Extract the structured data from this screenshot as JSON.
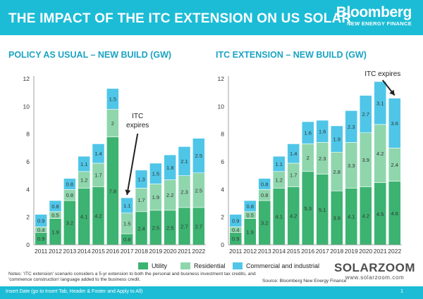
{
  "header": {
    "title": "THE IMPACT OF THE ITC EXTENSION ON US SOLAR",
    "logo_main": "Bloomberg",
    "logo_sub": "NEW ENERGY FINANCE"
  },
  "colors": {
    "header_bg": "#1cbcd6",
    "utility": "#3cb371",
    "residential": "#8fd6ad",
    "commercial": "#4fc6e8",
    "panel_title": "#1aa3c2"
  },
  "legend": {
    "utility": "Utility",
    "residential": "Residential",
    "commercial": "Commercial and industrial"
  },
  "notes": "Notes: 'ITC extension' scenario considers a 5-yr extension to both the personal and business investment tax credits, and 'commence construction' language added to the business credit.",
  "source": "Source: Bloomberg New Energy Finance",
  "watermark": {
    "main": "SOLARZOOM",
    "sub": "www.solarzoom.com"
  },
  "footer": {
    "text": "Insert Date (go to Insert Tab, Header & Footer and Apply to All)",
    "page": "1"
  },
  "chart_data": [
    {
      "type": "bar",
      "stacked": true,
      "title": "POLICY AS USUAL – NEW BUILD (GW)",
      "ylim": [
        0,
        12
      ],
      "yticks": [
        0,
        2,
        4,
        6,
        8,
        10,
        12
      ],
      "grid": false,
      "categories": [
        "2011",
        "2012",
        "2013",
        "2014",
        "2015",
        "2016",
        "2017",
        "2018",
        "2019",
        "2020",
        "2021",
        "2022"
      ],
      "series": [
        {
          "name": "Utility",
          "values": [
            0.9,
            1.9,
            3.2,
            4.1,
            4.2,
            7.8,
            0.8,
            2.4,
            2.5,
            2.5,
            2.7,
            2.7
          ]
        },
        {
          "name": "Residential",
          "values": [
            0.4,
            0.5,
            0.8,
            1.2,
            1.7,
            2.0,
            1.5,
            1.7,
            1.9,
            2.2,
            2.3,
            2.5
          ]
        },
        {
          "name": "Commercial and industrial",
          "values": [
            0.9,
            0.8,
            0.8,
            1.1,
            1.4,
            1.5,
            1.1,
            1.3,
            1.5,
            1.8,
            2.1,
            2.5
          ]
        }
      ],
      "annotation": {
        "text": "ITC expires",
        "category": "2017"
      }
    },
    {
      "type": "bar",
      "stacked": true,
      "title": "ITC EXTENSION – NEW BUILD (GW)",
      "ylim": [
        0,
        12
      ],
      "yticks": [
        0,
        2,
        4,
        6,
        8,
        10,
        12
      ],
      "grid": false,
      "categories": [
        "2011",
        "2012",
        "2013",
        "2014",
        "2015",
        "2016",
        "2017",
        "2018",
        "2019",
        "2020",
        "2021",
        "2022"
      ],
      "series": [
        {
          "name": "Utility",
          "values": [
            0.9,
            1.9,
            3.2,
            4.1,
            4.2,
            5.3,
            5.1,
            3.9,
            4.1,
            4.2,
            4.5,
            4.6
          ]
        },
        {
          "name": "Residential",
          "values": [
            0.4,
            0.5,
            0.8,
            1.2,
            1.7,
            2.0,
            2.3,
            2.8,
            3.3,
            3.9,
            4.2,
            2.4
          ]
        },
        {
          "name": "Commercial and industrial",
          "values": [
            0.9,
            0.8,
            0.8,
            1.1,
            1.4,
            1.6,
            1.6,
            1.9,
            2.3,
            2.7,
            3.1,
            3.6
          ]
        }
      ],
      "annotation": {
        "text": "ITC expires",
        "category": "2022"
      }
    }
  ]
}
